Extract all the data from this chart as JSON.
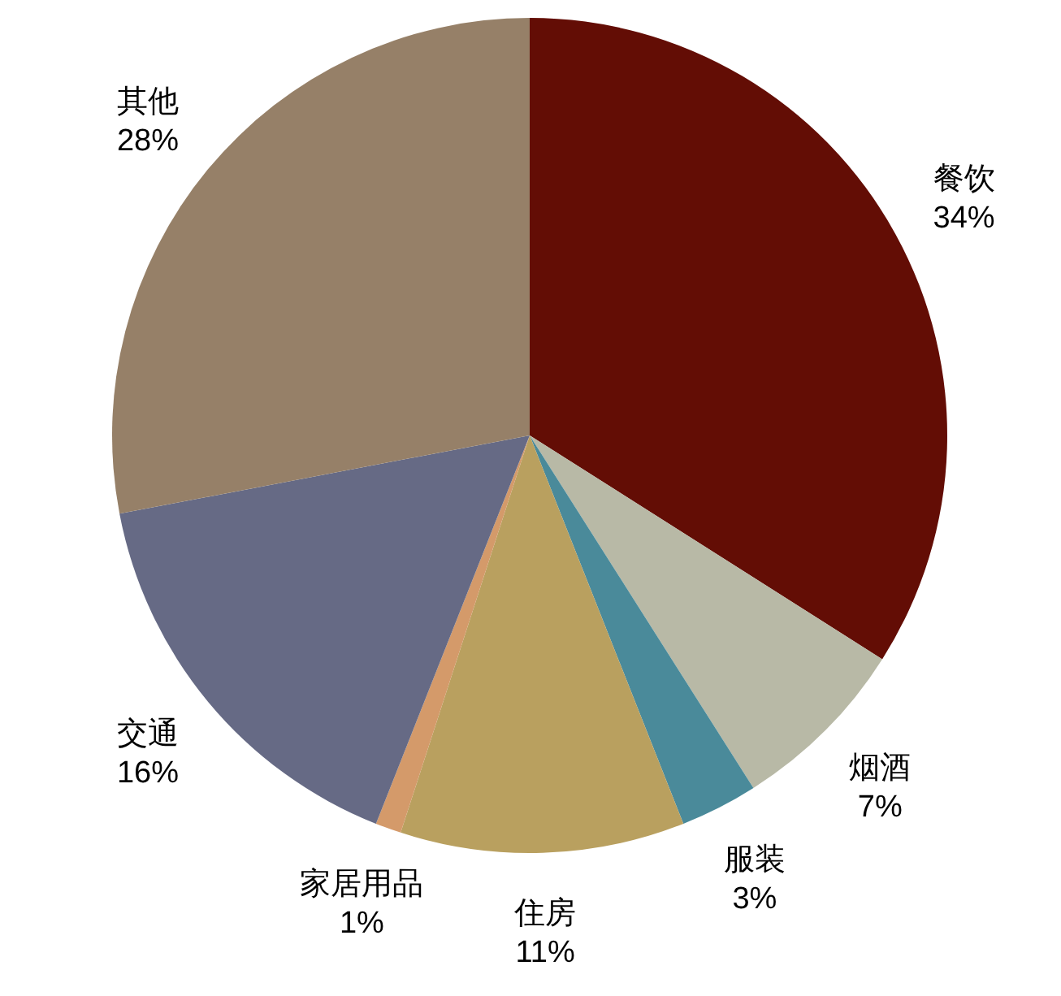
{
  "chart_data": {
    "type": "pie",
    "categories": [
      "餐饮",
      "烟酒",
      "服装",
      "住房",
      "家居用品",
      "交通",
      "其他"
    ],
    "values": [
      34,
      7,
      3,
      11,
      1,
      16,
      28
    ],
    "colors": [
      "#630d05",
      "#b8b9a6",
      "#4a8a9a",
      "#b9a05f",
      "#d49a6a",
      "#666a85",
      "#968068"
    ],
    "value_labels": [
      "34%",
      "7%",
      "3%",
      "11%",
      "1%",
      "16%",
      "28%"
    ]
  }
}
